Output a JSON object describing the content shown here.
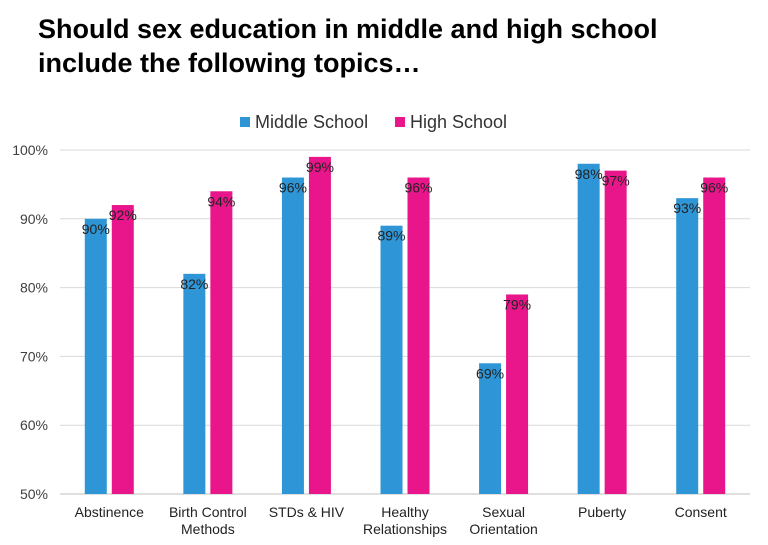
{
  "chart_data": {
    "type": "bar",
    "title": "Should sex education in middle and high school\ninclude the following topics…",
    "categories": [
      "Abstinence",
      "Birth Control\nMethods",
      "STDs & HIV",
      "Healthy\nRelationships",
      "Sexual\nOrientation",
      "Puberty",
      "Consent"
    ],
    "series": [
      {
        "name": "Middle School",
        "color": "#2e96d6",
        "values": [
          90,
          82,
          96,
          89,
          69,
          98,
          93
        ]
      },
      {
        "name": "High School",
        "color": "#e8168a",
        "values": [
          92,
          94,
          99,
          96,
          79,
          97,
          96
        ]
      }
    ],
    "ylim": [
      50,
      100
    ],
    "yticks": [
      "50%",
      "60%",
      "70%",
      "80%",
      "90%",
      "100%"
    ],
    "grid": true,
    "legend": "top",
    "data_label_suffix": "%"
  }
}
